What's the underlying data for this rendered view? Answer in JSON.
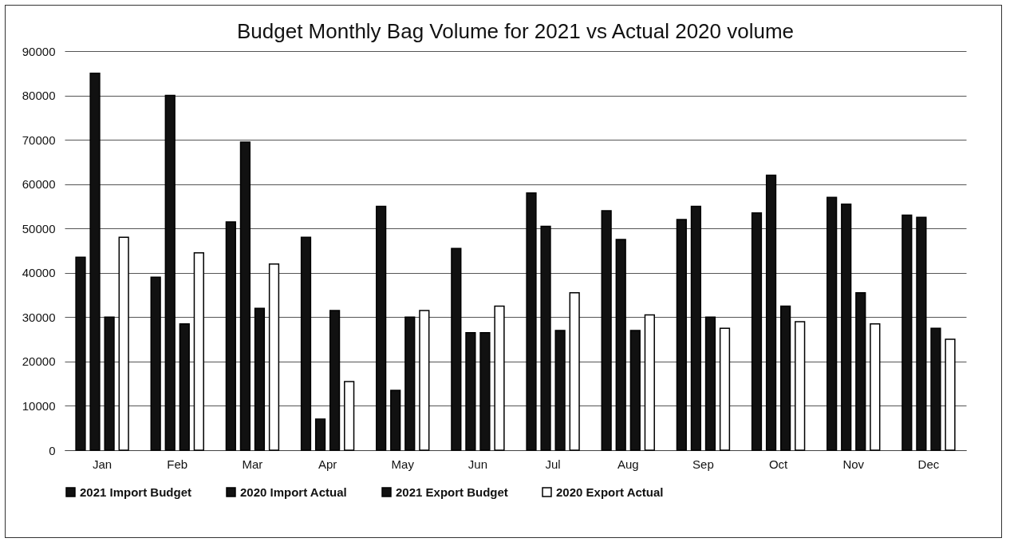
{
  "chart_data": {
    "type": "bar",
    "title": "Budget Monthly Bag Volume for 2021 vs Actual 2020 volume",
    "categories": [
      "Jan",
      "Feb",
      "Mar",
      "Apr",
      "May",
      "Jun",
      "Jul",
      "Aug",
      "Sep",
      "Oct",
      "Nov",
      "Dec"
    ],
    "series": [
      {
        "name": "2021 Import Budget",
        "color": "#111111",
        "values": [
          43500,
          39000,
          51500,
          48000,
          55000,
          45500,
          58000,
          54000,
          52000,
          53500,
          57000,
          53000
        ]
      },
      {
        "name": "2020 Import Actual",
        "color": "#111111",
        "values": [
          85000,
          80000,
          69500,
          7000,
          13500,
          26500,
          50500,
          47500,
          55000,
          62000,
          55500,
          52500
        ]
      },
      {
        "name": "2021 Export Budget",
        "color": "#111111",
        "values": [
          30000,
          28500,
          32000,
          31500,
          30000,
          26500,
          27000,
          27000,
          30000,
          32500,
          35500,
          27500
        ]
      },
      {
        "name": "2020 Export Actual",
        "color": "#ffffff",
        "values": [
          48000,
          44500,
          42000,
          15500,
          31500,
          32500,
          35500,
          30500,
          27500,
          29000,
          28500,
          25000
        ]
      }
    ],
    "ylim": [
      0,
      90000
    ],
    "yticks": [
      0,
      10000,
      20000,
      30000,
      40000,
      50000,
      60000,
      70000,
      80000,
      90000
    ],
    "grid": "y",
    "legend": "bottom"
  }
}
